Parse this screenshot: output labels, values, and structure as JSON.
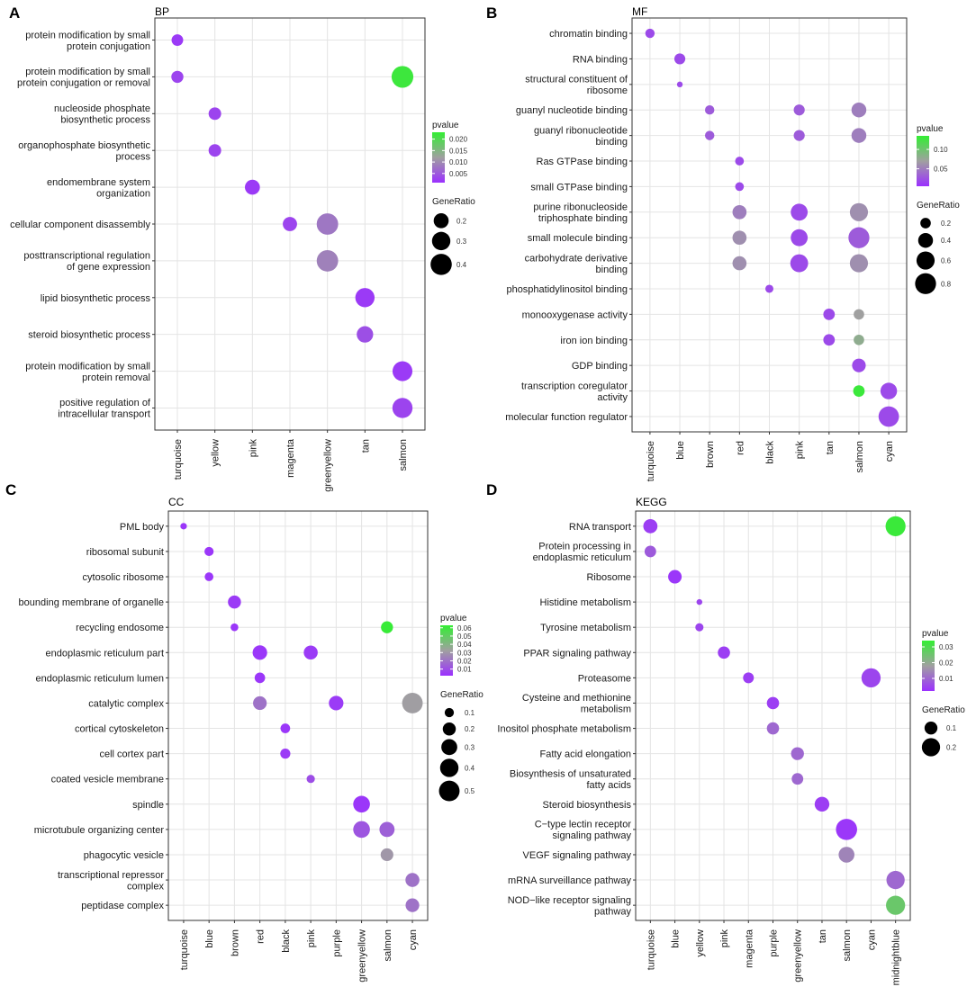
{
  "figure": {
    "panel_labels": [
      "A",
      "B",
      "C",
      "D"
    ]
  },
  "colors": {
    "pvalue_low": "#9b30ff",
    "pvalue_mid": "#a0a0a0",
    "pvalue_high": "#33ee33"
  },
  "chart_data": [
    {
      "type": "scatter",
      "panel_label": "A",
      "title": "BP",
      "xlabel": "",
      "ylabel": "",
      "categories_x": [
        "turquoise",
        "yellow",
        "pink",
        "magenta",
        "greenyellow",
        "tan",
        "salmon"
      ],
      "categories_y": [
        "protein modification by small protein conjugation",
        "protein modification by small protein conjugation or removal",
        "nucleoside phosphate biosynthetic process",
        "organophosphate biosynthetic process",
        "endomembrane system organization",
        "cellular component disassembly",
        "posttranscriptional regulation of gene expression",
        "lipid biosynthetic process",
        "steroid biosynthetic process",
        "protein modification by small protein removal",
        "positive regulation of intracellular transport"
      ],
      "points": [
        {
          "x": "turquoise",
          "y": "protein modification by small protein conjugation",
          "gene_ratio": 0.12,
          "pvalue": 0.002
        },
        {
          "x": "turquoise",
          "y": "protein modification by small protein conjugation or removal",
          "gene_ratio": 0.13,
          "pvalue": 0.003
        },
        {
          "x": "salmon",
          "y": "protein modification by small protein conjugation or removal",
          "gene_ratio": 0.42,
          "pvalue": 0.022
        },
        {
          "x": "yellow",
          "y": "nucleoside phosphate biosynthetic process",
          "gene_ratio": 0.14,
          "pvalue": 0.003
        },
        {
          "x": "yellow",
          "y": "organophosphate biosynthetic process",
          "gene_ratio": 0.14,
          "pvalue": 0.003
        },
        {
          "x": "pink",
          "y": "endomembrane system organization",
          "gene_ratio": 0.2,
          "pvalue": 0.002
        },
        {
          "x": "magenta",
          "y": "cellular component disassembly",
          "gene_ratio": 0.18,
          "pvalue": 0.003
        },
        {
          "x": "greenyellow",
          "y": "cellular component disassembly",
          "gene_ratio": 0.41,
          "pvalue": 0.008
        },
        {
          "x": "greenyellow",
          "y": "posttranscriptional regulation of gene expression",
          "gene_ratio": 0.41,
          "pvalue": 0.009
        },
        {
          "x": "tan",
          "y": "lipid biosynthetic process",
          "gene_ratio": 0.33,
          "pvalue": 0.002
        },
        {
          "x": "tan",
          "y": "steroid biosynthetic process",
          "gene_ratio": 0.24,
          "pvalue": 0.004
        },
        {
          "x": "salmon",
          "y": "protein modification by small protein removal",
          "gene_ratio": 0.35,
          "pvalue": 0.002
        },
        {
          "x": "salmon",
          "y": "positive regulation of intracellular transport",
          "gene_ratio": 0.36,
          "pvalue": 0.003
        }
      ],
      "size_legend": {
        "title": "GeneRatio",
        "values": [
          0.2,
          0.3,
          0.4
        ],
        "labels": [
          "0.2",
          "0.3",
          "0.4"
        ],
        "range": [
          0.1,
          0.45
        ]
      },
      "color_legend": {
        "title": "pvalue",
        "range": [
          0.001,
          0.023
        ],
        "ticks": [
          0.005,
          0.01,
          0.015,
          0.02
        ],
        "tick_labels": [
          "0.005",
          "0.010",
          "0.015",
          "0.020"
        ]
      }
    },
    {
      "type": "scatter",
      "panel_label": "B",
      "title": "MF",
      "xlabel": "",
      "ylabel": "",
      "categories_x": [
        "turquoise",
        "blue",
        "brown",
        "red",
        "black",
        "pink",
        "tan",
        "salmon",
        "cyan"
      ],
      "categories_y": [
        "chromatin binding",
        "RNA binding",
        "structural constituent of ribosome",
        "guanyl nucleotide binding",
        "guanyl ribonucleotide binding",
        "Ras GTPase binding",
        "small GTPase binding",
        "purine ribonucleoside triphosphate binding",
        "small molecule binding",
        "carbohydrate derivative binding",
        "phosphatidylinositol binding",
        "monooxygenase activity",
        "iron ion binding",
        "GDP binding",
        "transcription coregulator activity",
        "molecular function regulator"
      ],
      "points": [
        {
          "x": "turquoise",
          "y": "chromatin binding",
          "gene_ratio": 0.16,
          "pvalue": 0.02
        },
        {
          "x": "blue",
          "y": "RNA binding",
          "gene_ratio": 0.22,
          "pvalue": 0.02
        },
        {
          "x": "blue",
          "y": "structural constituent of ribosome",
          "gene_ratio": 0.06,
          "pvalue": 0.02
        },
        {
          "x": "brown",
          "y": "guanyl nucleotide binding",
          "gene_ratio": 0.16,
          "pvalue": 0.03
        },
        {
          "x": "pink",
          "y": "guanyl nucleotide binding",
          "gene_ratio": 0.22,
          "pvalue": 0.03
        },
        {
          "x": "salmon",
          "y": "guanyl nucleotide binding",
          "gene_ratio": 0.4,
          "pvalue": 0.05
        },
        {
          "x": "brown",
          "y": "guanyl ribonucleotide binding",
          "gene_ratio": 0.16,
          "pvalue": 0.03
        },
        {
          "x": "pink",
          "y": "guanyl ribonucleotide binding",
          "gene_ratio": 0.22,
          "pvalue": 0.03
        },
        {
          "x": "salmon",
          "y": "guanyl ribonucleotide binding",
          "gene_ratio": 0.4,
          "pvalue": 0.05
        },
        {
          "x": "red",
          "y": "Ras GTPase binding",
          "gene_ratio": 0.14,
          "pvalue": 0.02
        },
        {
          "x": "red",
          "y": "small GTPase binding",
          "gene_ratio": 0.14,
          "pvalue": 0.02
        },
        {
          "x": "red",
          "y": "purine ribonucleoside triphosphate binding",
          "gene_ratio": 0.36,
          "pvalue": 0.05
        },
        {
          "x": "pink",
          "y": "purine ribonucleoside triphosphate binding",
          "gene_ratio": 0.52,
          "pvalue": 0.02
        },
        {
          "x": "salmon",
          "y": "purine ribonucleoside triphosphate binding",
          "gene_ratio": 0.6,
          "pvalue": 0.06
        },
        {
          "x": "red",
          "y": "small molecule binding",
          "gene_ratio": 0.36,
          "pvalue": 0.06
        },
        {
          "x": "pink",
          "y": "small molecule binding",
          "gene_ratio": 0.52,
          "pvalue": 0.02
        },
        {
          "x": "salmon",
          "y": "small molecule binding",
          "gene_ratio": 0.8,
          "pvalue": 0.03
        },
        {
          "x": "red",
          "y": "carbohydrate derivative binding",
          "gene_ratio": 0.36,
          "pvalue": 0.06
        },
        {
          "x": "pink",
          "y": "carbohydrate derivative binding",
          "gene_ratio": 0.58,
          "pvalue": 0.02
        },
        {
          "x": "salmon",
          "y": "carbohydrate derivative binding",
          "gene_ratio": 0.6,
          "pvalue": 0.06
        },
        {
          "x": "black",
          "y": "phosphatidylinositol binding",
          "gene_ratio": 0.12,
          "pvalue": 0.02
        },
        {
          "x": "tan",
          "y": "monooxygenase activity",
          "gene_ratio": 0.24,
          "pvalue": 0.02
        },
        {
          "x": "salmon",
          "y": "monooxygenase activity",
          "gene_ratio": 0.2,
          "pvalue": 0.07
        },
        {
          "x": "tan",
          "y": "iron ion binding",
          "gene_ratio": 0.24,
          "pvalue": 0.02
        },
        {
          "x": "salmon",
          "y": "iron ion binding",
          "gene_ratio": 0.2,
          "pvalue": 0.08
        },
        {
          "x": "salmon",
          "y": "GDP binding",
          "gene_ratio": 0.34,
          "pvalue": 0.02
        },
        {
          "x": "salmon",
          "y": "transcription coregulator activity",
          "gene_ratio": 0.24,
          "pvalue": 0.13
        },
        {
          "x": "cyan",
          "y": "transcription coregulator activity",
          "gene_ratio": 0.5,
          "pvalue": 0.02
        },
        {
          "x": "cyan",
          "y": "molecular function regulator",
          "gene_ratio": 0.76,
          "pvalue": 0.02
        }
      ],
      "size_legend": {
        "title": "GeneRatio",
        "values": [
          0.2,
          0.4,
          0.6,
          0.8
        ],
        "labels": [
          "0.2",
          "0.4",
          "0.6",
          "0.8"
        ],
        "range": [
          0.05,
          0.85
        ]
      },
      "color_legend": {
        "title": "pvalue",
        "range": [
          0.005,
          0.135
        ],
        "ticks": [
          0.05,
          0.1
        ],
        "tick_labels": [
          "0.05",
          "0.10"
        ]
      }
    },
    {
      "type": "scatter",
      "panel_label": "C",
      "title": "CC",
      "xlabel": "",
      "ylabel": "",
      "categories_x": [
        "turquoise",
        "blue",
        "brown",
        "red",
        "black",
        "pink",
        "purple",
        "greenyellow",
        "salmon",
        "cyan"
      ],
      "categories_y": [
        "PML body",
        "ribosomal subunit",
        "cytosolic ribosome",
        "bounding membrane of organelle",
        "recycling endosome",
        "endoplasmic reticulum part",
        "endoplasmic reticulum lumen",
        "catalytic complex",
        "cortical cytoskeleton",
        "cell cortex part",
        "coated vesicle membrane",
        "spindle",
        "microtubule organizing center",
        "phagocytic vesicle",
        "transcriptional repressor complex",
        "peptidase complex"
      ],
      "points": [
        {
          "x": "turquoise",
          "y": "PML body",
          "gene_ratio": 0.05,
          "pvalue": 0.004
        },
        {
          "x": "blue",
          "y": "ribosomal subunit",
          "gene_ratio": 0.1,
          "pvalue": 0.004
        },
        {
          "x": "blue",
          "y": "cytosolic ribosome",
          "gene_ratio": 0.09,
          "pvalue": 0.004
        },
        {
          "x": "brown",
          "y": "bounding membrane of organelle",
          "gene_ratio": 0.2,
          "pvalue": 0.005
        },
        {
          "x": "brown",
          "y": "recycling endosome",
          "gene_ratio": 0.07,
          "pvalue": 0.004
        },
        {
          "x": "salmon",
          "y": "recycling endosome",
          "gene_ratio": 0.17,
          "pvalue": 0.062
        },
        {
          "x": "red",
          "y": "endoplasmic reticulum part",
          "gene_ratio": 0.25,
          "pvalue": 0.004
        },
        {
          "x": "pink",
          "y": "endoplasmic reticulum part",
          "gene_ratio": 0.23,
          "pvalue": 0.005
        },
        {
          "x": "red",
          "y": "endoplasmic reticulum lumen",
          "gene_ratio": 0.13,
          "pvalue": 0.004
        },
        {
          "x": "red",
          "y": "catalytic complex",
          "gene_ratio": 0.22,
          "pvalue": 0.02
        },
        {
          "x": "purple",
          "y": "catalytic complex",
          "gene_ratio": 0.25,
          "pvalue": 0.005
        },
        {
          "x": "cyan",
          "y": "catalytic complex",
          "gene_ratio": 0.5,
          "pvalue": 0.032
        },
        {
          "x": "black",
          "y": "cortical cytoskeleton",
          "gene_ratio": 0.11,
          "pvalue": 0.004
        },
        {
          "x": "black",
          "y": "cell cortex part",
          "gene_ratio": 0.12,
          "pvalue": 0.005
        },
        {
          "x": "pink",
          "y": "coated vesicle membrane",
          "gene_ratio": 0.08,
          "pvalue": 0.01
        },
        {
          "x": "greenyellow",
          "y": "spindle",
          "gene_ratio": 0.33,
          "pvalue": 0.004
        },
        {
          "x": "greenyellow",
          "y": "microtubule organizing center",
          "gene_ratio": 0.33,
          "pvalue": 0.012
        },
        {
          "x": "salmon",
          "y": "microtubule organizing center",
          "gene_ratio": 0.27,
          "pvalue": 0.015
        },
        {
          "x": "salmon",
          "y": "phagocytic vesicle",
          "gene_ratio": 0.19,
          "pvalue": 0.03
        },
        {
          "x": "cyan",
          "y": "transcriptional repressor complex",
          "gene_ratio": 0.23,
          "pvalue": 0.02
        },
        {
          "x": "cyan",
          "y": "peptidase complex",
          "gene_ratio": 0.22,
          "pvalue": 0.02
        }
      ],
      "size_legend": {
        "title": "GeneRatio",
        "values": [
          0.1,
          0.2,
          0.3,
          0.4,
          0.5
        ],
        "labels": [
          "0.1",
          "0.2",
          "0.3",
          "0.4",
          "0.5"
        ],
        "range": [
          0.03,
          0.55
        ]
      },
      "color_legend": {
        "title": "pvalue",
        "range": [
          0.002,
          0.063
        ],
        "ticks": [
          0.01,
          0.02,
          0.03,
          0.04,
          0.05,
          0.06
        ],
        "tick_labels": [
          "0.01",
          "0.02",
          "0.03",
          "0.04",
          "0.05",
          "0.06"
        ]
      }
    },
    {
      "type": "scatter",
      "panel_label": "D",
      "title": "KEGG",
      "xlabel": "",
      "ylabel": "",
      "categories_x": [
        "turquoise",
        "blue",
        "yellow",
        "pink",
        "magenta",
        "purple",
        "greenyellow",
        "tan",
        "salmon",
        "cyan",
        "midnightblue"
      ],
      "categories_y": [
        "RNA transport",
        "Protein processing in endoplasmic reticulum",
        "Ribosome",
        "Histidine metabolism",
        "Tyrosine metabolism",
        "PPAR signaling pathway",
        "Proteasome",
        "Cysteine and methionine metabolism",
        "Inositol phosphate metabolism",
        "Fatty acid elongation",
        "Biosynthesis of unsaturated fatty acids",
        "Steroid biosynthesis",
        "C−type lectin receptor signaling pathway",
        "VEGF signaling pathway",
        "mRNA surveillance pathway",
        "NOD−like receptor signaling pathway"
      ],
      "points": [
        {
          "x": "turquoise",
          "y": "RNA transport",
          "gene_ratio": 0.12,
          "pvalue": 0.004
        },
        {
          "x": "midnightblue",
          "y": "RNA transport",
          "gene_ratio": 0.24,
          "pvalue": 0.033
        },
        {
          "x": "turquoise",
          "y": "Protein processing in endoplasmic reticulum",
          "gene_ratio": 0.08,
          "pvalue": 0.008
        },
        {
          "x": "blue",
          "y": "Ribosome",
          "gene_ratio": 0.11,
          "pvalue": 0.003
        },
        {
          "x": "yellow",
          "y": "Histidine metabolism",
          "gene_ratio": 0.02,
          "pvalue": 0.005
        },
        {
          "x": "yellow",
          "y": "Tyrosine metabolism",
          "gene_ratio": 0.04,
          "pvalue": 0.005
        },
        {
          "x": "pink",
          "y": "PPAR signaling pathway",
          "gene_ratio": 0.09,
          "pvalue": 0.004
        },
        {
          "x": "magenta",
          "y": "Proteasome",
          "gene_ratio": 0.07,
          "pvalue": 0.004
        },
        {
          "x": "cyan",
          "y": "Proteasome",
          "gene_ratio": 0.22,
          "pvalue": 0.005
        },
        {
          "x": "purple",
          "y": "Cysteine and methionine metabolism",
          "gene_ratio": 0.09,
          "pvalue": 0.004
        },
        {
          "x": "purple",
          "y": "Inositol phosphate metabolism",
          "gene_ratio": 0.09,
          "pvalue": 0.01
        },
        {
          "x": "greenyellow",
          "y": "Fatty acid elongation",
          "gene_ratio": 0.1,
          "pvalue": 0.01
        },
        {
          "x": "greenyellow",
          "y": "Biosynthesis of unsaturated fatty acids",
          "gene_ratio": 0.08,
          "pvalue": 0.01
        },
        {
          "x": "tan",
          "y": "Steroid biosynthesis",
          "gene_ratio": 0.13,
          "pvalue": 0.004
        },
        {
          "x": "salmon",
          "y": "C−type lectin receptor signaling pathway",
          "gene_ratio": 0.27,
          "pvalue": 0.003
        },
        {
          "x": "salmon",
          "y": "VEGF signaling pathway",
          "gene_ratio": 0.15,
          "pvalue": 0.014
        },
        {
          "x": "midnightblue",
          "y": "mRNA surveillance pathway",
          "gene_ratio": 0.2,
          "pvalue": 0.01
        },
        {
          "x": "midnightblue",
          "y": "NOD−like receptor signaling pathway",
          "gene_ratio": 0.22,
          "pvalue": 0.026
        }
      ],
      "size_legend": {
        "title": "GeneRatio",
        "values": [
          0.1,
          0.2
        ],
        "labels": [
          "0.1",
          "0.2"
        ],
        "range": [
          0.02,
          0.28
        ]
      },
      "color_legend": {
        "title": "pvalue",
        "range": [
          0.002,
          0.034
        ],
        "ticks": [
          0.01,
          0.02,
          0.03
        ],
        "tick_labels": [
          "0.01",
          "0.02",
          "0.03"
        ]
      }
    }
  ]
}
